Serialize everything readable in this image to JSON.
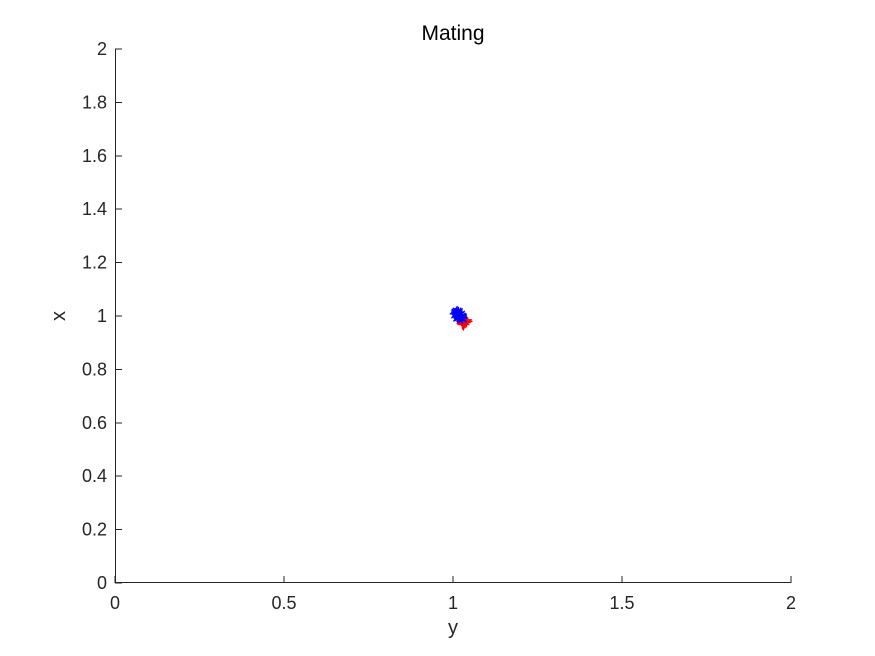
{
  "chart_data": {
    "type": "scatter",
    "title": "Mating",
    "xlabel": "y",
    "ylabel": "x",
    "xlim": [
      0,
      2
    ],
    "ylim": [
      0,
      2
    ],
    "xticks": [
      0,
      0.5,
      1,
      1.5,
      2
    ],
    "xtick_labels": [
      "0",
      "0.5",
      "1",
      "1.5",
      "2"
    ],
    "yticks": [
      0,
      0.2,
      0.4,
      0.6,
      0.8,
      1,
      1.2,
      1.4,
      1.6,
      1.8,
      2
    ],
    "ytick_labels": [
      "0",
      "0.2",
      "0.4",
      "0.6",
      "0.8",
      "1",
      "1.2",
      "1.4",
      "1.6",
      "1.8",
      "2"
    ],
    "grid": false,
    "series": [
      {
        "marker": "+",
        "color": "#ff0000",
        "points": [
          [
            1.025,
            0.985
          ],
          [
            1.03,
            0.978
          ],
          [
            1.035,
            0.982
          ],
          [
            1.028,
            0.972
          ],
          [
            1.04,
            0.98
          ],
          [
            1.022,
            0.99
          ],
          [
            1.033,
            0.975
          ],
          [
            1.038,
            0.986
          ],
          [
            1.027,
            0.98
          ],
          [
            1.031,
            0.968
          ],
          [
            1.02,
            0.995
          ],
          [
            1.036,
            0.977
          ]
        ]
      },
      {
        "marker": "*",
        "color": "#0000ff",
        "points": [
          [
            1.01,
            1.01
          ],
          [
            1.015,
            1.005
          ],
          [
            1.02,
            1.0
          ],
          [
            1.012,
            1.015
          ],
          [
            1.018,
            0.998
          ],
          [
            1.025,
            0.995
          ],
          [
            1.008,
            1.008
          ],
          [
            1.022,
            1.003
          ],
          [
            1.016,
            1.012
          ],
          [
            1.028,
            0.992
          ],
          [
            1.014,
            0.996
          ]
        ]
      }
    ]
  }
}
